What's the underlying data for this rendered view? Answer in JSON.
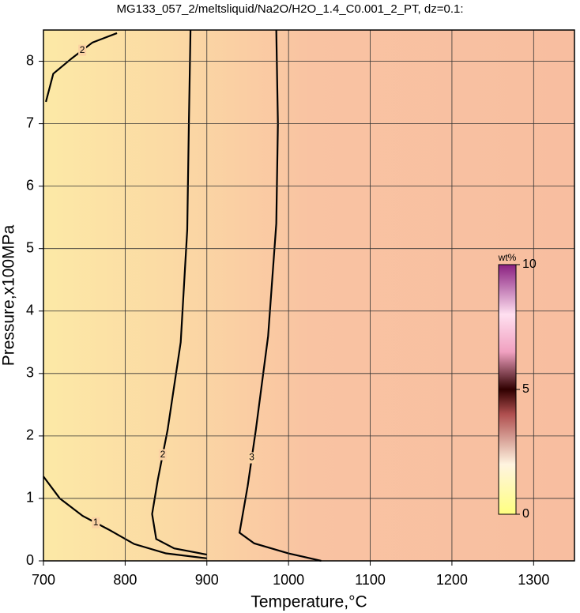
{
  "chart_data": {
    "type": "contour",
    "title": "MG133_057_2/meltsliquid/Na2O/H2O_1.4_C0.001_2_PT, dz=0.1:",
    "xlabel": "Temperature,°C",
    "ylabel": "Pressure,x100MPa",
    "xlim": [
      700,
      1350
    ],
    "ylim": [
      0,
      8.5
    ],
    "xticks": [
      700,
      800,
      900,
      1000,
      1100,
      1200,
      1300
    ],
    "yticks": [
      0,
      1,
      2,
      3,
      4,
      5,
      6,
      7,
      8
    ],
    "grid": true,
    "series": [
      {
        "name": "1",
        "color": "#000000",
        "x": [
          700,
          720,
          748,
          780,
          811,
          850,
          900
        ],
        "y": [
          1.35,
          1.0,
          0.72,
          0.5,
          0.27,
          0.12,
          0.04
        ]
      },
      {
        "name": "2",
        "color": "#000000",
        "x": [
          880,
          878,
          876,
          868,
          852,
          840,
          833,
          838,
          860,
          900
        ],
        "y": [
          8.5,
          7.0,
          5.3,
          3.5,
          2.1,
          1.3,
          0.75,
          0.35,
          0.2,
          0.1
        ]
      },
      {
        "name": "3",
        "color": "#000000",
        "x": [
          985,
          987,
          985,
          975,
          960,
          950,
          940,
          958,
          1000,
          1040
        ],
        "y": [
          8.5,
          7.0,
          5.4,
          3.6,
          2.1,
          1.2,
          0.45,
          0.28,
          0.12,
          0.0
        ]
      },
      {
        "name": "2",
        "color": "#000000",
        "x": [
          703,
          712,
          735,
          760,
          790
        ],
        "y": [
          7.35,
          7.8,
          8.05,
          8.3,
          8.45
        ]
      }
    ],
    "colorbar": {
      "label": "wt%",
      "lim": [
        0,
        10
      ],
      "ticks": [
        0,
        5,
        10
      ]
    }
  }
}
